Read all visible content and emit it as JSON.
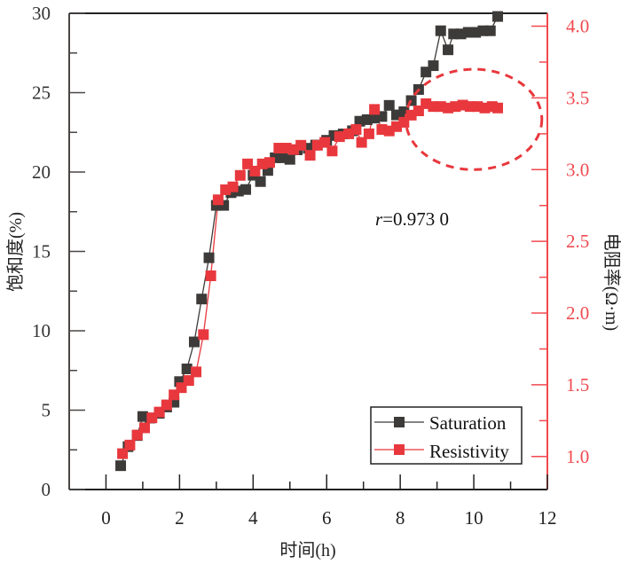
{
  "chart_data": {
    "type": "line",
    "xlabel": "时间(h)",
    "ylabel": "饱和度(%)",
    "y2label": "电阻率(Ω·m)",
    "xlim": [
      -1,
      12
    ],
    "ylim": [
      0,
      30
    ],
    "y2lim": [
      0.77,
      4.09
    ],
    "xticks": [
      "0",
      "2",
      "4",
      "6",
      "8",
      "10",
      "12"
    ],
    "yticks": [
      "0",
      "5",
      "10",
      "15",
      "20",
      "25",
      "30"
    ],
    "y2ticks": [
      "1.0",
      "1.5",
      "2.0",
      "2.5",
      "3.0",
      "3.5",
      "4.0"
    ],
    "legend_position": "bottom-right",
    "annotation": {
      "text_italic": "r",
      "text": "=0.973 0",
      "ellipse_center": [
        10,
        3.35
      ],
      "ellipse_radius": [
        1.85,
        0.35
      ]
    },
    "colors": {
      "saturation": "#3d3b39",
      "resistivity": "#e8383d",
      "axis_right": "#f04a4f"
    },
    "series": [
      {
        "name": "Saturation",
        "axis": "left",
        "x": [
          0.4,
          0.6,
          0.85,
          1.0,
          1.2,
          1.45,
          1.65,
          1.85,
          2.0,
          2.2,
          2.4,
          2.6,
          2.8,
          3.0,
          3.2,
          3.4,
          3.6,
          3.8,
          4.0,
          4.2,
          4.4,
          4.6,
          4.8,
          5.0,
          5.2,
          5.5,
          5.7,
          6.0,
          6.2,
          6.45,
          6.7,
          6.9,
          7.1,
          7.3,
          7.5,
          7.7,
          7.9,
          8.1,
          8.3,
          8.5,
          8.7,
          8.9,
          9.1,
          9.3,
          9.45,
          9.65,
          9.85,
          10.05,
          10.25,
          10.45,
          10.65
        ],
        "values": [
          1.5,
          2.7,
          3.4,
          4.6,
          4.5,
          4.8,
          5.2,
          5.5,
          6.8,
          7.6,
          9.3,
          12.0,
          14.6,
          17.9,
          17.9,
          18.7,
          18.8,
          18.9,
          19.8,
          19.4,
          20.1,
          20.9,
          20.9,
          20.8,
          21.4,
          21.5,
          21.7,
          22.0,
          22.3,
          22.4,
          22.6,
          23.2,
          23.3,
          23.4,
          23.5,
          24.2,
          23.6,
          23.8,
          24.5,
          25.2,
          26.3,
          26.7,
          28.9,
          27.7,
          28.7,
          28.7,
          28.8,
          28.8,
          28.9,
          28.9,
          29.8
        ]
      },
      {
        "name": "Resistivity",
        "axis": "right",
        "x": [
          0.45,
          0.65,
          0.85,
          1.05,
          1.25,
          1.45,
          1.65,
          1.85,
          2.05,
          2.25,
          2.45,
          2.65,
          2.85,
          3.05,
          3.25,
          3.45,
          3.65,
          3.85,
          4.05,
          4.25,
          4.45,
          4.7,
          4.9,
          5.1,
          5.3,
          5.55,
          5.75,
          5.95,
          6.15,
          6.35,
          6.6,
          6.8,
          6.95,
          7.15,
          7.3,
          7.5,
          7.7,
          7.9,
          8.1,
          8.3,
          8.5,
          8.7,
          8.9,
          9.1,
          9.3,
          9.5,
          9.7,
          9.9,
          10.1,
          10.3,
          10.5,
          10.65
        ],
        "values": [
          1.02,
          1.08,
          1.15,
          1.2,
          1.27,
          1.31,
          1.36,
          1.43,
          1.48,
          1.53,
          1.59,
          1.85,
          2.26,
          2.79,
          2.86,
          2.88,
          2.96,
          3.04,
          2.99,
          3.04,
          3.05,
          3.15,
          3.15,
          3.14,
          3.17,
          3.1,
          3.17,
          3.19,
          3.13,
          3.23,
          3.25,
          3.28,
          3.19,
          3.25,
          3.42,
          3.28,
          3.27,
          3.3,
          3.33,
          3.38,
          3.41,
          3.46,
          3.44,
          3.44,
          3.43,
          3.44,
          3.45,
          3.44,
          3.44,
          3.43,
          3.44,
          3.43
        ]
      }
    ]
  }
}
